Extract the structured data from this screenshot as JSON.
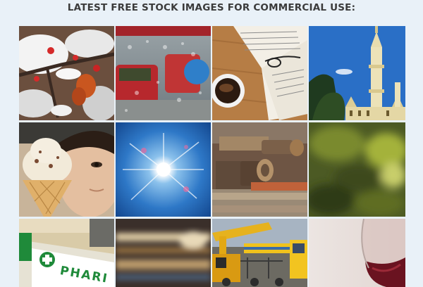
{
  "heading": "LATEST FREE STOCK IMAGES FOR COMMERCIAL USE:",
  "gallery": {
    "images": [
      {
        "subject": "snow-covered-berries-icon"
      },
      {
        "subject": "rainy-window-cars-icon"
      },
      {
        "subject": "coffee-and-book-icon"
      },
      {
        "subject": "mosque-minaret-icon"
      },
      {
        "subject": "girl-with-ice-cream-icon"
      },
      {
        "subject": "sun-in-blue-sky-icon"
      },
      {
        "subject": "rusty-bolts-icon"
      },
      {
        "subject": "blurred-foliage-icon"
      },
      {
        "subject": "pharmacy-sign-icon"
      },
      {
        "subject": "blurred-abstract-icon"
      },
      {
        "subject": "construction-machinery-icon"
      },
      {
        "subject": "red-wine-glass-icon"
      }
    ],
    "pharmacy_sign_text": "PHARI"
  }
}
